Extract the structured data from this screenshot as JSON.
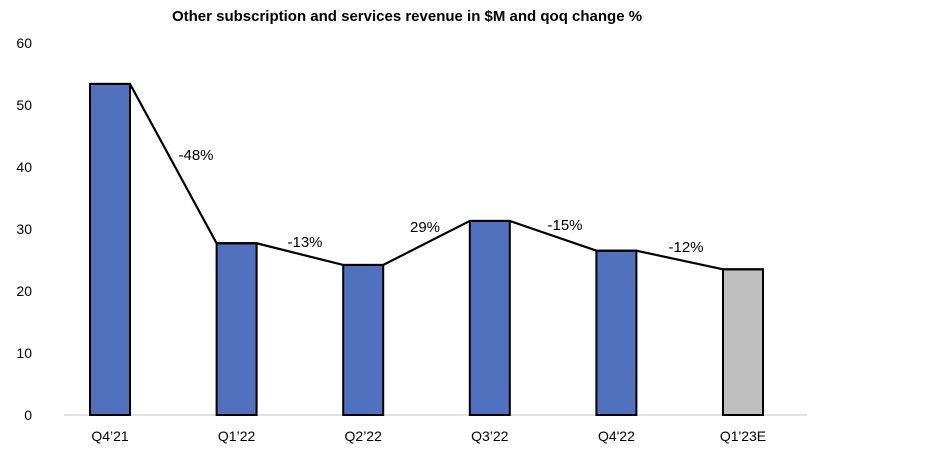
{
  "chart_data": {
    "type": "bar",
    "title": "Other subscription and services revenue in $M and qoq change %",
    "xlabel": "",
    "ylabel": "",
    "categories": [
      "Q4’21",
      "Q1’22",
      "Q2’22",
      "Q3’22",
      "Q4'22",
      "Q1'23E"
    ],
    "values": [
      53.4,
      27.7,
      24.2,
      31.3,
      26.5,
      23.5
    ],
    "bar_colors": [
      "#4F71BE",
      "#4F71BE",
      "#4F71BE",
      "#4F71BE",
      "#4F71BE",
      "#BFBFBF"
    ],
    "estimate_flags": [
      false,
      false,
      false,
      false,
      false,
      true
    ],
    "line_overlay": {
      "type": "line",
      "description": "connects bar tops",
      "color": "#000000"
    },
    "annotations": [
      "-48%",
      "-13%",
      "29%",
      "-15%",
      "-12%"
    ],
    "ylim": [
      0,
      60
    ],
    "yticks": [
      0,
      10,
      20,
      30,
      40,
      50,
      60
    ],
    "grid": false,
    "legend": "none"
  }
}
